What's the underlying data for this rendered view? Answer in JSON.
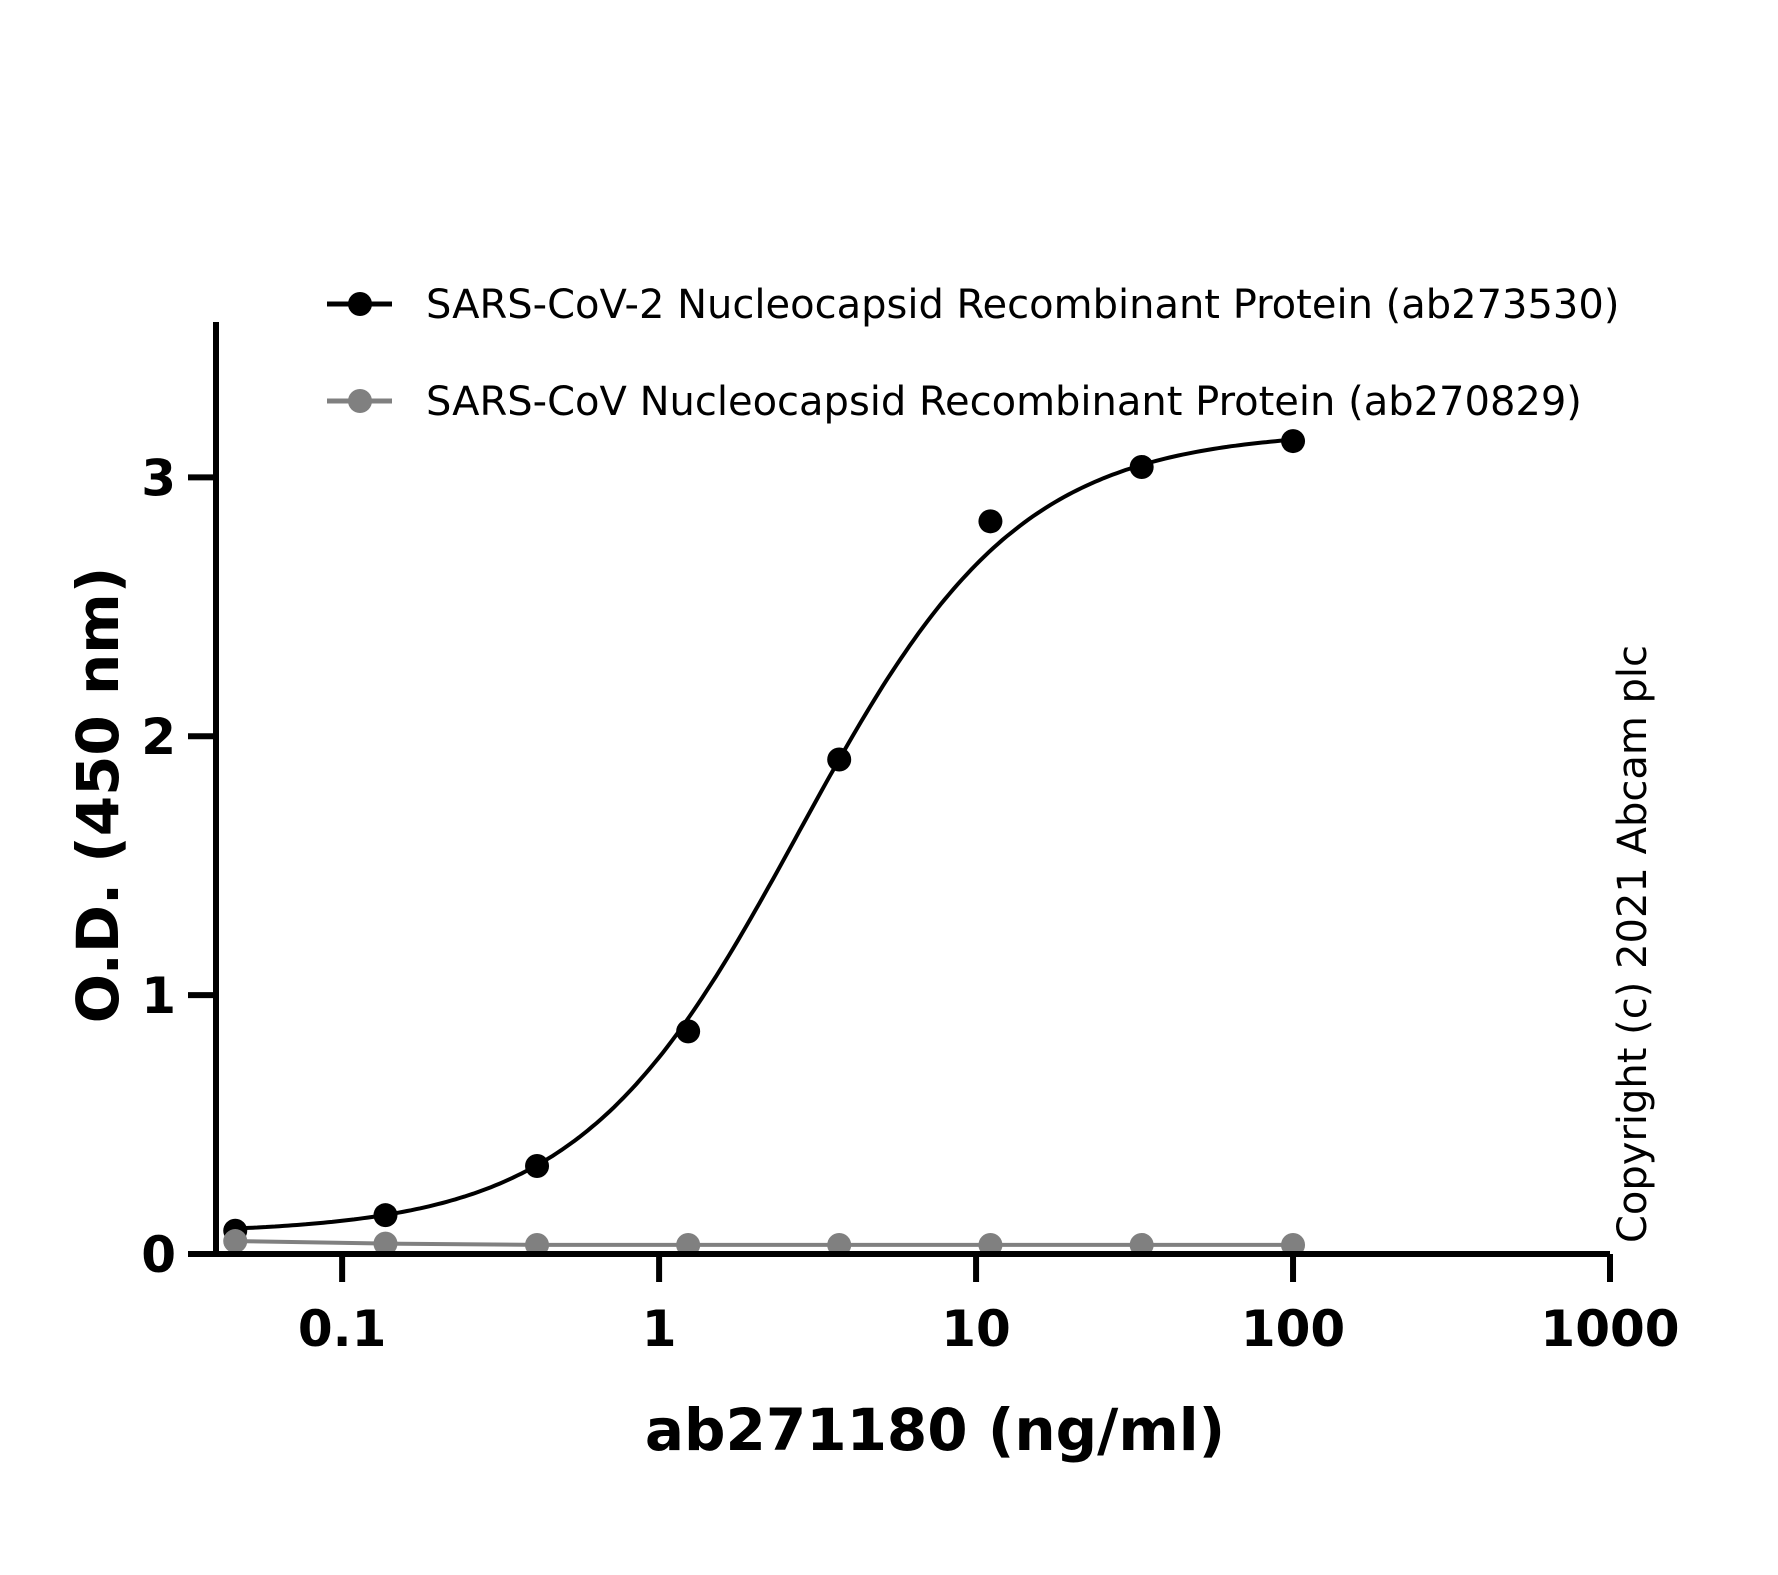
{
  "chart_data": {
    "type": "scatter",
    "xlabel": "ab271180  (ng/ml)",
    "ylabel": "O.D. (450 nm)",
    "xscale": "log",
    "xlim": [
      0.04,
      1000
    ],
    "ylim": [
      0,
      3.6
    ],
    "x_ticks": [
      0.1,
      1,
      10,
      100,
      1000
    ],
    "x_tick_labels": [
      "0.1",
      "1",
      "10",
      "100",
      "1000"
    ],
    "y_ticks": [
      0,
      1,
      2,
      3
    ],
    "y_tick_labels": [
      "0",
      "1",
      "2",
      "3"
    ],
    "grid": false,
    "legend_position": "top",
    "series": [
      {
        "name": "SARS-CoV-2 Nucleocapsid Recombinant Protein (ab273530)",
        "color": "#000000",
        "marker": "circle",
        "fit": "sigmoidal",
        "x": [
          0.046,
          0.137,
          0.412,
          1.235,
          3.7,
          11.1,
          33.3,
          100
        ],
        "y": [
          0.09,
          0.15,
          0.34,
          0.86,
          1.91,
          2.83,
          3.04,
          3.14
        ]
      },
      {
        "name": "SARS-CoV Nucleocapsid Recombinant Protein (ab270829)",
        "color": "#808080",
        "marker": "circle",
        "fit": "line",
        "x": [
          0.046,
          0.137,
          0.412,
          1.235,
          3.7,
          11.1,
          33.3,
          100
        ],
        "y": [
          0.05,
          0.04,
          0.035,
          0.035,
          0.035,
          0.035,
          0.035,
          0.035
        ]
      }
    ],
    "annotation": "Copyright (c) 2021 Abcam plc"
  }
}
